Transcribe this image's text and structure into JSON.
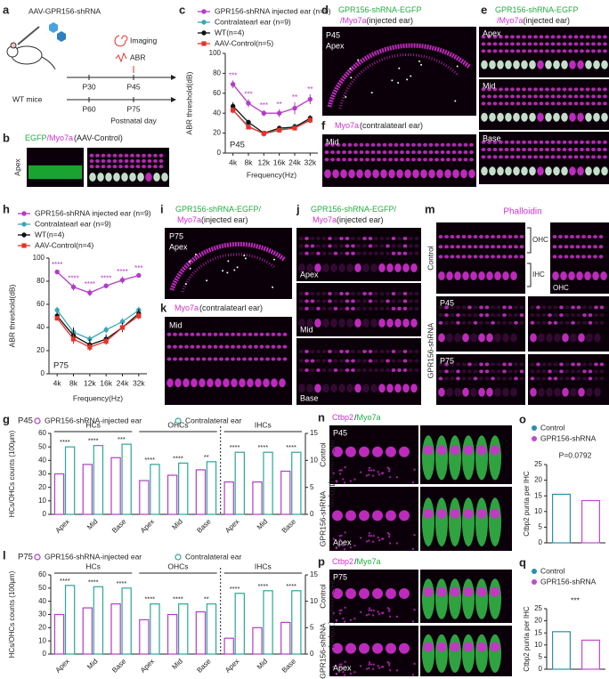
{
  "panels": {
    "a": {
      "label": "a",
      "vector": "AAV-GPR156-shRNA",
      "imaging": "Imaging",
      "abr": "ABR",
      "mice": "WT mice",
      "days": [
        "P30",
        "P45",
        "P60",
        "P75"
      ],
      "axis_label": "Postnatal day"
    },
    "b": {
      "label": "b",
      "title": [
        "EGFP",
        "/Myo7a",
        "(AAV-Control)"
      ],
      "region": "Apex"
    },
    "d": {
      "label": "d",
      "title": [
        "GPR156-shRNA-EGFP",
        "/Myo7a",
        "(injected ear)"
      ],
      "age": "P45",
      "region": "Apex"
    },
    "e": {
      "label": "e",
      "title": [
        "GPR156-shRNA-EGFP",
        "/Myo7a",
        "(injected ear)"
      ],
      "regions": [
        "Apex",
        "Mid",
        "Base"
      ]
    },
    "f": {
      "label": "f",
      "title": [
        "Myo7a",
        "(contralatearl ear)"
      ],
      "region": "Mid"
    },
    "i": {
      "label": "i",
      "title": [
        "GPR156-shRNA-EGFP/",
        "Myo7a",
        "(injected ear)"
      ],
      "age": "P75",
      "region": "Apex"
    },
    "j": {
      "label": "j",
      "title": [
        "GPR156-shRNA-EGFP/",
        "Myo7a",
        "(injected ear)"
      ],
      "regions": [
        "Apex",
        "Mid",
        "Base"
      ]
    },
    "k": {
      "label": "k",
      "title": [
        "Myo7a",
        "(contralatearl ear)"
      ],
      "region": "Mid"
    },
    "m": {
      "label": "m",
      "title": "Phalloidin",
      "rows": [
        "Control",
        "P45",
        "P75"
      ],
      "group": "GPR156-shRNA",
      "ohc": "OHC",
      "ihc": "IHC",
      "ohc_zoom": "OHC"
    },
    "n": {
      "label": "n",
      "title": [
        "Ctbp2",
        "/",
        "Myo7a"
      ],
      "age": "P45",
      "rows": [
        "Control",
        "GPR156-shRNA"
      ],
      "region": "Apex"
    },
    "p": {
      "label": "p",
      "title": [
        "Ctbp2",
        "/",
        "Myo7a"
      ],
      "age": "P75",
      "rows": [
        "Control",
        "GPR156-shRNA"
      ],
      "region": "Apex"
    }
  },
  "chart_data": [
    {
      "label": "c",
      "type": "line",
      "annotation": "P45",
      "x_label": "Frequency(Hz)",
      "y_label": "ABR threshold(dB)",
      "categories": [
        "4k",
        "8k",
        "12k",
        "16k",
        "24k",
        "32k"
      ],
      "ylim": [
        0,
        100
      ],
      "yticks": [
        0,
        20,
        40,
        60,
        80,
        100
      ],
      "significance": [
        "***",
        "***",
        "***",
        "**",
        "**",
        "**"
      ],
      "series": [
        {
          "name": "GPR156-shRNA injected ear (n=9)",
          "color": "#b43cc8",
          "marker": "circle",
          "values": [
            69,
            50,
            40,
            40,
            45,
            54
          ],
          "errors": [
            4,
            4,
            3,
            4,
            6,
            5
          ]
        },
        {
          "name": "Contralatearl ear (n=9)",
          "color": "#3aa7b8",
          "marker": "circle",
          "values": [
            43,
            27,
            19,
            23,
            27,
            33
          ],
          "errors": [
            3,
            2,
            2,
            2,
            2,
            2
          ]
        },
        {
          "name": "WT(n=4)",
          "color": "#111111",
          "marker": "circle",
          "values": [
            47,
            31,
            20,
            25,
            26,
            35
          ],
          "errors": [
            4,
            2,
            2,
            2,
            3,
            3
          ]
        },
        {
          "name": "AAV-Control(n=5)",
          "color": "#e6332a",
          "marker": "square",
          "values": [
            43,
            26,
            20,
            23,
            25,
            33
          ],
          "errors": [
            3,
            2,
            2,
            2,
            2,
            3
          ]
        }
      ]
    },
    {
      "label": "h",
      "type": "line",
      "annotation": "P75",
      "x_label": "Frequency(Hz)",
      "y_label": "ABR threshold(dB)",
      "categories": [
        "4k",
        "8k",
        "12k",
        "16k",
        "24k",
        "32k"
      ],
      "ylim": [
        0,
        100
      ],
      "yticks": [
        0,
        20,
        40,
        60,
        80,
        100
      ],
      "significance": [
        "****",
        "****",
        "****",
        "****",
        "****",
        "***"
      ],
      "series": [
        {
          "name": "GPR156-shRNA injected ear (n=9)",
          "color": "#b43cc8",
          "marker": "circle",
          "values": [
            88,
            75,
            70,
            76,
            81,
            85
          ],
          "errors": [
            2,
            3,
            3,
            2,
            3,
            2
          ]
        },
        {
          "name": "Contralatearl ear (n=9)",
          "color": "#3aa7b8",
          "marker": "circle",
          "values": [
            55,
            36,
            30,
            38,
            45,
            55
          ],
          "errors": [
            3,
            3,
            3,
            3,
            3,
            3
          ]
        },
        {
          "name": "WT(n=4)",
          "color": "#111111",
          "marker": "circle",
          "values": [
            50,
            33,
            25,
            30,
            40,
            52
          ],
          "errors": [
            3,
            7,
            5,
            4,
            4,
            4
          ]
        },
        {
          "name": "AAV-Control(n=4)",
          "color": "#e6332a",
          "marker": "square",
          "values": [
            48,
            30,
            23,
            28,
            40,
            50
          ],
          "errors": [
            2,
            4,
            3,
            3,
            3,
            3
          ]
        }
      ]
    },
    {
      "label": "g",
      "type": "bar",
      "annotation": "P45",
      "y_label": "HCs/OHCs counts (100μm)",
      "y2_label": "IHCs counts (100μm)",
      "ylim": [
        0,
        60
      ],
      "yticks": [
        0,
        10,
        20,
        30,
        40,
        50,
        60
      ],
      "y2lim": [
        0,
        15
      ],
      "y2ticks": [
        0,
        5,
        10,
        15
      ],
      "series": [
        {
          "name": "GPR156-shRNA-injected ear",
          "color": "#b43cc8"
        },
        {
          "name": "Contralateral ear",
          "color": "#2aa796"
        }
      ],
      "groups": [
        {
          "name": "HCs",
          "categories": [
            "Apex",
            "Mid",
            "Base"
          ],
          "values": [
            [
              30,
              37,
              42
            ],
            [
              50,
              51,
              52
            ]
          ],
          "significance": [
            "****",
            "****",
            "***"
          ]
        },
        {
          "name": "OHCs",
          "categories": [
            "Apex",
            "Mid",
            "Base"
          ],
          "values": [
            [
              25,
              29,
              33
            ],
            [
              37,
              38,
              39
            ]
          ],
          "significance": [
            "****",
            "****",
            "**"
          ]
        },
        {
          "name": "IHCs",
          "axis": "y2",
          "categories": [
            "Apex",
            "Mid",
            "Base"
          ],
          "values": [
            [
              6,
              6,
              8
            ],
            [
              11.5,
              11.5,
              11.5
            ]
          ],
          "significance": [
            "****",
            "****",
            "****"
          ]
        }
      ]
    },
    {
      "label": "l",
      "type": "bar",
      "annotation": "P75",
      "y_label": "HCs/OHCs counts (100μm)",
      "y2_label": "IHCs counts (100μm)",
      "ylim": [
        0,
        60
      ],
      "yticks": [
        0,
        10,
        20,
        30,
        40,
        50,
        60
      ],
      "y2lim": [
        0,
        15
      ],
      "y2ticks": [
        0,
        5,
        10,
        15
      ],
      "series": [
        {
          "name": "GPR156-shRNA-injected ear",
          "color": "#b43cc8"
        },
        {
          "name": "Contralateral ear",
          "color": "#2aa796"
        }
      ],
      "groups": [
        {
          "name": "HCs",
          "categories": [
            "Apex",
            "Mid",
            "Base"
          ],
          "values": [
            [
              30,
              35,
              38
            ],
            [
              52,
              51,
              50
            ]
          ],
          "significance": [
            "****",
            "****",
            "****"
          ]
        },
        {
          "name": "OHCs",
          "categories": [
            "Apex",
            "Mid",
            "Base"
          ],
          "values": [
            [
              26,
              30,
              32
            ],
            [
              38,
              38,
              38
            ]
          ],
          "significance": [
            "****",
            "****",
            "**"
          ]
        },
        {
          "name": "IHCs",
          "axis": "y2",
          "categories": [
            "Apex",
            "Mid",
            "Base"
          ],
          "values": [
            [
              3,
              5,
              6
            ],
            [
              11.5,
              12,
              12
            ]
          ],
          "significance": [
            "****",
            "****",
            "****"
          ]
        }
      ]
    },
    {
      "label": "o",
      "type": "bar",
      "annotation": "P=0.0792",
      "y_label": "Ctbp2 punta per IHC",
      "ylim": [
        0,
        25
      ],
      "yticks": [
        0,
        5,
        10,
        15,
        20,
        25
      ],
      "series": [
        {
          "name": "Control",
          "color": "#2a8fb0",
          "values": [
            15.5
          ]
        },
        {
          "name": "GPR156-shRNA",
          "color": "#c04ad0",
          "values": [
            13.5
          ]
        }
      ]
    },
    {
      "label": "q",
      "type": "bar",
      "annotation": "***",
      "y_label": "Ctbp2 punta per IHC",
      "ylim": [
        0,
        25
      ],
      "yticks": [
        0,
        5,
        10,
        15,
        20,
        25
      ],
      "series": [
        {
          "name": "Control",
          "color": "#2a8fb0",
          "values": [
            15.5
          ]
        },
        {
          "name": "GPR156-shRNA",
          "color": "#c04ad0",
          "values": [
            12
          ]
        }
      ]
    }
  ]
}
